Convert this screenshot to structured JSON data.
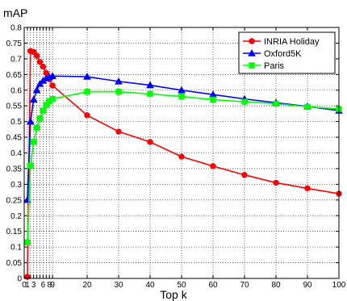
{
  "chart_data": {
    "type": "line",
    "title": "",
    "xlabel": "Top k",
    "ylabel": "mAP",
    "xlim": [
      0,
      100
    ],
    "ylim": [
      0,
      0.8
    ],
    "grid": true,
    "legend_position": "top-right",
    "x_ticks": [
      0,
      3,
      6,
      9,
      20,
      30,
      40,
      50,
      60,
      70,
      80,
      90,
      100
    ],
    "x_tick_labels": [
      "0",
      "3",
      "6",
      "9",
      "20",
      "30",
      "40",
      "50",
      "60",
      "70",
      "80",
      "90",
      "100"
    ],
    "x_ticks_extra": [
      1,
      2,
      4,
      5,
      7,
      8
    ],
    "x_tick_labels_extra": [
      "1",
      "",
      "",
      "",
      "",
      "8"
    ],
    "y_ticks": [
      0,
      0.05,
      0.1,
      0.15,
      0.2,
      0.25,
      0.3,
      0.35,
      0.4,
      0.45,
      0.5,
      0.55,
      0.6,
      0.65,
      0.7,
      0.75,
      0.8
    ],
    "y_tick_labels": [
      "0",
      "0.05",
      "0.1",
      "0.15",
      "0.2",
      "0.25",
      "0.3",
      "0.35",
      "0.4",
      "0.45",
      "0.5",
      "0.55",
      "0.6",
      "0.65",
      "0.7",
      "0.75",
      "0.8"
    ],
    "x": [
      1,
      2,
      3,
      4,
      5,
      6,
      7,
      8,
      9,
      20,
      30,
      40,
      50,
      60,
      70,
      80,
      90,
      100
    ],
    "series": [
      {
        "name": "INRIA Holiday",
        "color": "#ff0000",
        "marker": "circle",
        "values": [
          0.005,
          0.725,
          0.722,
          0.71,
          0.69,
          0.675,
          0.655,
          0.635,
          0.615,
          0.52,
          0.468,
          0.435,
          0.388,
          0.358,
          0.33,
          0.305,
          0.287,
          0.27
        ]
      },
      {
        "name": "Oxford5K",
        "color": "#0000ff",
        "marker": "triangle",
        "values": [
          0.25,
          0.5,
          0.57,
          0.6,
          0.62,
          0.63,
          0.638,
          0.642,
          0.645,
          0.643,
          0.628,
          0.616,
          0.6,
          0.586,
          0.572,
          0.56,
          0.548,
          0.535
        ]
      },
      {
        "name": "Paris",
        "color": "#00ff00",
        "marker": "square",
        "values": [
          0.115,
          0.36,
          0.435,
          0.48,
          0.51,
          0.535,
          0.553,
          0.565,
          0.572,
          0.595,
          0.595,
          0.588,
          0.58,
          0.57,
          0.563,
          0.557,
          0.547,
          0.54
        ]
      }
    ]
  }
}
